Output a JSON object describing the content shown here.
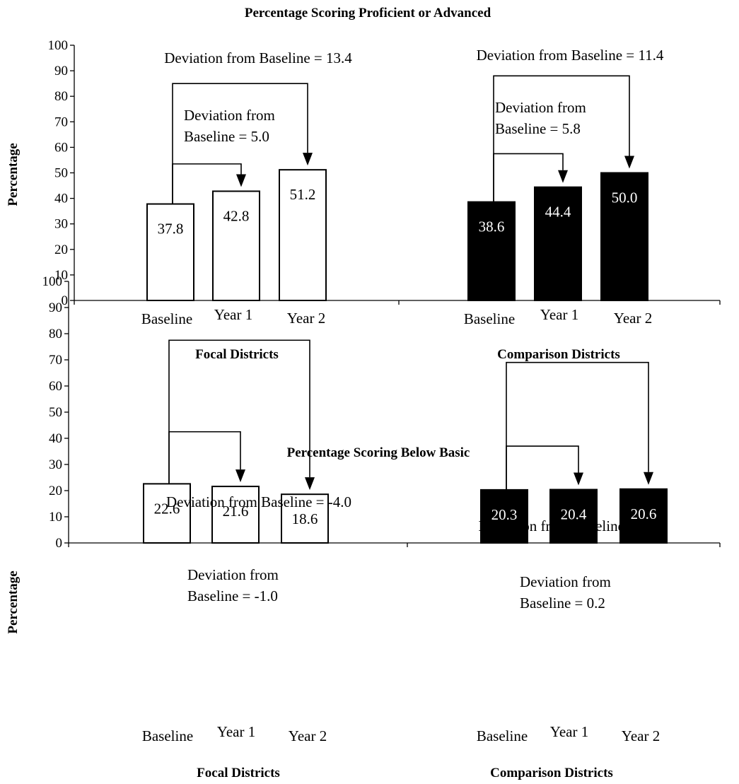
{
  "chart_data": [
    {
      "type": "bar",
      "title": "Percentage Scoring Proficient or Advanced",
      "ylabel": "Percentage",
      "ylim": [
        0,
        100
      ],
      "yticks": [
        0,
        10,
        20,
        30,
        40,
        50,
        60,
        70,
        80,
        90,
        100
      ],
      "grid": false,
      "categories": [
        "Baseline",
        "Year 1",
        "Year 2"
      ],
      "series": [
        {
          "name": "Focal Districts",
          "color": "#ffffff",
          "values": [
            37.8,
            42.8,
            51.2
          ],
          "value_labels": [
            "37.8",
            "42.8",
            "51.2"
          ],
          "annotations": [
            {
              "text": "Deviation from Baseline = 13.4",
              "to": 2,
              "level": 85
            },
            {
              "text_lines": [
                "Deviation from",
                "Baseline = 5.0"
              ],
              "to": 1,
              "level": 53.5
            }
          ]
        },
        {
          "name": "Comparison Districts",
          "color": "#000000",
          "values": [
            38.6,
            44.4,
            50.0
          ],
          "value_labels": [
            "38.6",
            "44.4",
            "50.0"
          ],
          "annotations": [
            {
              "text": "Deviation from Baseline = 11.4",
              "to": 2,
              "level": 88
            },
            {
              "text_lines": [
                "Deviation from",
                "Baseline = 5.8"
              ],
              "to": 1,
              "level": 57.5
            }
          ]
        }
      ]
    },
    {
      "type": "bar",
      "title": "Percentage Scoring Below Basic",
      "ylabel": "Percentage",
      "ylim": [
        0,
        100
      ],
      "yticks": [
        0,
        10,
        20,
        30,
        40,
        50,
        60,
        70,
        80,
        90,
        100
      ],
      "grid": false,
      "categories": [
        "Baseline",
        "Year 1",
        "Year 2"
      ],
      "series": [
        {
          "name": "Focal Districts",
          "color": "#ffffff",
          "values": [
            22.6,
            21.6,
            18.6
          ],
          "value_labels": [
            "22.6",
            "21.6",
            "18.6"
          ],
          "annotations": [
            {
              "text": "Deviation from Baseline = -4.0",
              "to": 2,
              "level": 77.5
            },
            {
              "text_lines": [
                "Deviation from",
                "Baseline = -1.0"
              ],
              "to": 1,
              "level": 42.5
            }
          ]
        },
        {
          "name": "Comparison Districts",
          "color": "#000000",
          "values": [
            20.3,
            20.4,
            20.6
          ],
          "value_labels": [
            "20.3",
            "20.4",
            "20.6"
          ],
          "annotations": [
            {
              "text": "Deviation from Baseline = 0.3",
              "to": 2,
              "level": 69
            },
            {
              "text_lines": [
                "Deviation from",
                "Baseline = 0.2"
              ],
              "to": 1,
              "level": 37
            }
          ]
        }
      ]
    }
  ]
}
